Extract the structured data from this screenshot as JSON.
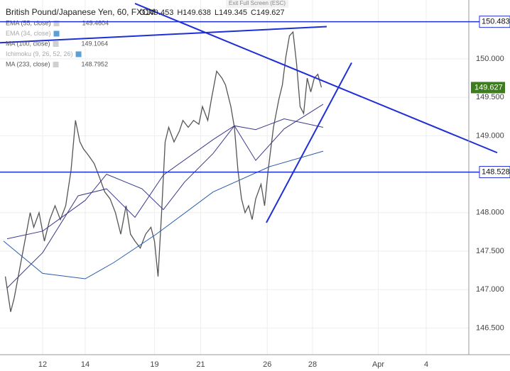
{
  "chart_data": {
    "type": "line",
    "title": "British Pound/Japanese Yen, 60, FXCM",
    "ohlc_labels": [
      "O",
      "H",
      "L",
      "C"
    ],
    "ohlc_values": [
      149.453,
      149.638,
      149.345,
      149.627
    ],
    "banner": "Exit Full Screen (ESC)",
    "indicators": [
      {
        "name": "EMA (55, close)",
        "value": 149.4604,
        "active": true
      },
      {
        "name": "EMA (34, close)",
        "active": false
      },
      {
        "name": "MA (100, close)",
        "value": 149.1064,
        "active": true
      },
      {
        "name": "Ichimoku (9, 26, 52, 26)",
        "active": false
      },
      {
        "name": "MA (233, close)",
        "value": 148.7952,
        "active": true
      }
    ],
    "xlim": [
      0,
      528
    ],
    "ylim": [
      146.153,
      150.766
    ],
    "xticks": [
      {
        "value": 48,
        "label": "12"
      },
      {
        "value": 96,
        "label": "14"
      },
      {
        "value": 174,
        "label": "19"
      },
      {
        "value": 226,
        "label": "21"
      },
      {
        "value": 301,
        "label": "26"
      },
      {
        "value": 352,
        "label": "28"
      },
      {
        "value": 426,
        "label": "Apr"
      },
      {
        "value": 480,
        "label": "4"
      }
    ],
    "yticks": [
      {
        "value": 146.5,
        "label": "146.500"
      },
      {
        "value": 147,
        "label": "147.000"
      },
      {
        "value": 147.5,
        "label": "147.500"
      },
      {
        "value": 148,
        "label": "148.000"
      },
      {
        "value": 149,
        "label": "149.000"
      },
      {
        "value": 149.5,
        "label": "149.500"
      },
      {
        "value": 150,
        "label": "150.000"
      }
    ],
    "series": [
      {
        "name": "Price",
        "color": "#555555",
        "x": [
          6,
          12,
          16,
          22,
          28,
          34,
          38,
          44,
          50,
          56,
          62,
          68,
          74,
          80,
          85,
          90,
          94,
          100,
          106,
          112,
          118,
          124,
          130,
          136,
          142,
          147,
          152,
          158,
          164,
          170,
          174,
          178,
          182,
          186,
          190,
          196,
          202,
          206,
          212,
          218,
          224,
          228,
          234,
          238,
          244,
          250,
          254,
          260,
          264,
          268,
          272,
          276,
          280,
          284,
          288,
          294,
          298,
          302,
          308,
          314,
          318,
          322,
          326,
          330,
          334,
          338,
          342,
          346,
          350,
          354,
          358,
          362
        ],
        "values": [
          147.17,
          146.71,
          146.89,
          147.26,
          147.63,
          148.0,
          147.81,
          148.0,
          147.63,
          147.91,
          148.09,
          147.91,
          148.09,
          148.55,
          149.2,
          148.92,
          148.83,
          148.74,
          148.64,
          148.46,
          148.27,
          148.18,
          148.0,
          147.72,
          148.09,
          147.72,
          147.63,
          147.54,
          147.72,
          147.81,
          147.63,
          147.17,
          148.0,
          148.92,
          149.11,
          148.92,
          149.06,
          149.2,
          149.11,
          149.2,
          149.15,
          149.38,
          149.2,
          149.47,
          149.84,
          149.75,
          149.66,
          149.38,
          149.11,
          148.55,
          148.18,
          148.0,
          148.09,
          147.91,
          148.18,
          148.37,
          148.09,
          148.55,
          149.11,
          149.47,
          149.66,
          150.03,
          150.3,
          150.35,
          149.94,
          149.38,
          149.29,
          149.75,
          149.57,
          149.75,
          149.8,
          149.63
        ]
      },
      {
        "name": "EMA (55, close)",
        "color": "#3a3a8c",
        "x": [
          8,
          48,
          88,
          120,
          152,
          184,
          240,
          264,
          288,
          320,
          364
        ],
        "values": [
          147.02,
          147.48,
          148.22,
          148.31,
          147.94,
          148.49,
          148.95,
          149.13,
          148.68,
          149.09,
          149.41
        ]
      },
      {
        "name": "MA (100, close)",
        "color": "#3a3a8c",
        "x": [
          8,
          48,
          96,
          120,
          160,
          184,
          208,
          240,
          264,
          288,
          320,
          364
        ],
        "values": [
          147.66,
          147.76,
          148.16,
          148.5,
          148.31,
          148.04,
          148.4,
          148.77,
          149.13,
          149.08,
          149.22,
          149.11
        ]
      },
      {
        "name": "MA (233, close)",
        "color": "#2a5caa",
        "x": [
          4,
          48,
          96,
          128,
          176,
          240,
          304,
          364
        ],
        "values": [
          147.63,
          147.21,
          147.14,
          147.35,
          147.72,
          148.27,
          148.6,
          148.8
        ]
      }
    ],
    "trendlines": [
      {
        "x": [
          152,
          560
        ],
        "values": [
          150.72,
          148.78
        ]
      },
      {
        "x": [
          300,
          396
        ],
        "values": [
          147.87,
          149.95
        ]
      },
      {
        "x": [
          0,
          368
        ],
        "values": [
          150.21,
          150.42
        ]
      }
    ],
    "levels": [
      {
        "value": 150.483,
        "label": "150.483"
      },
      {
        "value": 148.528,
        "label": "148.528"
      }
    ],
    "last_price": {
      "value": 149.627,
      "label": "149.627"
    },
    "line_color": "#1f2fd6",
    "grid": true
  }
}
